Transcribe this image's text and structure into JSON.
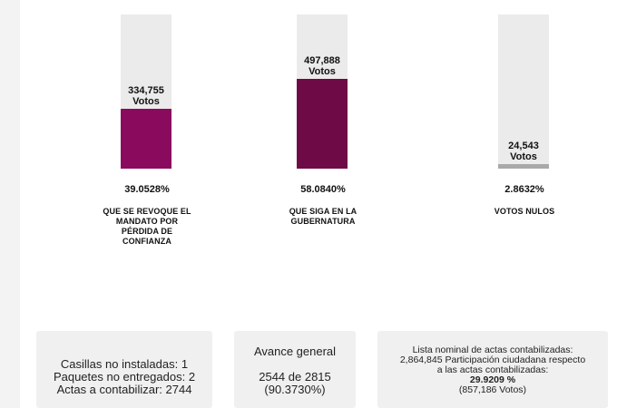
{
  "bars": [
    {
      "votes": "334,755",
      "votes_unit": "Votos",
      "percent_text": "39.0528%",
      "percent": 39.0528,
      "label": "QUE SE REVOQUE EL MANDATO POR PÉRDIDA DE CONFIANZA",
      "color": "#8a0a5e"
    },
    {
      "votes": "497,888",
      "votes_unit": "Votos",
      "percent_text": "58.0840%",
      "percent": 58.084,
      "label": "QUE SIGA EN LA GUBERNATURA",
      "color": "#6e0a45"
    },
    {
      "votes": "24,543",
      "votes_unit": "Votos",
      "percent_text": "2.8632%",
      "percent": 2.8632,
      "label": "VOTOS NULOS",
      "color": "#a9a9a9"
    }
  ],
  "card1": {
    "casillas": "Casillas no instaladas: 1",
    "paquetes": "Paquetes no entregados: 2",
    "actas": "Actas a contabilizar: 2744"
  },
  "card2": {
    "title": "Avance general",
    "count": "2544 de 2815",
    "percent": "(90.3730%)"
  },
  "card3": {
    "line1": "Lista nominal de actas contabilizadas:",
    "line2": "2,864,845 Participación ciudadana respecto",
    "line3": "a las actas contabilizadas:",
    "participation_pct": "29.9209 %",
    "participation_votes": "(857,186 Votos)"
  }
}
